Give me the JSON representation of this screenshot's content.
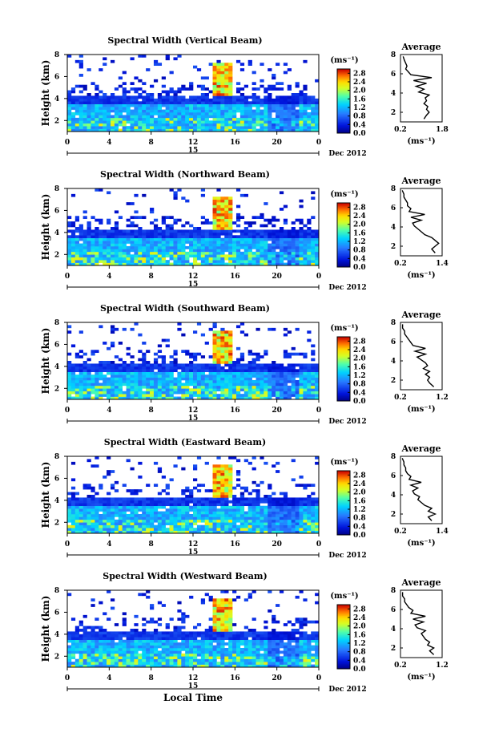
{
  "chart_data": [
    {
      "type": "heatmap",
      "title": "Spectral Width (Vertical Beam)",
      "ylabel": "Height (km)",
      "yticks": [
        "2",
        "4",
        "6",
        "8"
      ],
      "xticks": [
        "0",
        "4",
        "8",
        "12",
        "16",
        "20",
        "0"
      ],
      "xlim": [
        0,
        24
      ],
      "ylim": [
        1,
        8
      ],
      "date_day": "15",
      "date_month": "Dec 2012",
      "colorbar": {
        "unit": "(ms⁻¹)",
        "ticks": [
          "0.0",
          "0.4",
          "0.8",
          "1.2",
          "1.6",
          "2.0",
          "2.4",
          "2.8"
        ],
        "range": [
          0,
          3.0
        ]
      },
      "profile": {
        "title": "Average",
        "yticks": [
          "2",
          "4",
          "6",
          "8"
        ],
        "xticks": [
          "0.2",
          "1.8"
        ],
        "xlim": [
          0.2,
          1.8
        ],
        "xlabel": "(ms⁻¹)",
        "x": [
          1.1,
          1.2,
          1.3,
          1.2,
          1.25,
          1.1,
          1.2,
          1.15,
          1.3,
          0.9,
          1.1,
          0.8,
          1.2,
          0.7,
          1.4,
          0.6,
          0.5,
          0.4,
          0.45,
          0.4,
          0.35,
          0.3
        ],
        "y": [
          1.3,
          1.7,
          2.0,
          2.3,
          2.6,
          2.9,
          3.2,
          3.5,
          3.8,
          4.1,
          4.4,
          4.7,
          5.0,
          5.3,
          5.6,
          5.9,
          6.2,
          6.5,
          6.8,
          7.1,
          7.4,
          7.8
        ]
      }
    },
    {
      "type": "heatmap",
      "title": "Spectral Width (Northward Beam)",
      "ylabel": "Height (km)",
      "yticks": [
        "2",
        "4",
        "6",
        "8"
      ],
      "xticks": [
        "0",
        "4",
        "8",
        "12",
        "16",
        "20",
        "0"
      ],
      "xlim": [
        0,
        24
      ],
      "ylim": [
        1,
        8
      ],
      "date_day": "15",
      "date_month": "Dec 2012",
      "colorbar": {
        "unit": "(ms⁻¹)",
        "ticks": [
          "0.0",
          "0.4",
          "0.8",
          "1.2",
          "1.6",
          "2.0",
          "2.4",
          "2.8"
        ],
        "range": [
          0,
          3.0
        ]
      },
      "profile": {
        "title": "Average",
        "yticks": [
          "2",
          "4",
          "6",
          "8"
        ],
        "xticks": [
          "0.2",
          "1.4"
        ],
        "xlim": [
          0.2,
          1.4
        ],
        "xlabel": "(ms⁻¹)",
        "x": [
          1.2,
          1.1,
          1.2,
          1.3,
          1.2,
          1.1,
          0.9,
          0.8,
          0.7,
          0.6,
          0.55,
          0.8,
          0.5,
          0.9,
          0.45,
          0.5,
          0.4,
          0.4,
          0.35,
          0.3,
          0.3,
          0.25
        ],
        "y": [
          1.3,
          1.7,
          2.0,
          2.3,
          2.6,
          2.9,
          3.2,
          3.5,
          3.8,
          4.1,
          4.4,
          4.7,
          5.0,
          5.3,
          5.6,
          5.9,
          6.2,
          6.5,
          6.8,
          7.1,
          7.4,
          7.8
        ]
      }
    },
    {
      "type": "heatmap",
      "title": "Spectral Width (Southward Beam)",
      "ylabel": "Height (km)",
      "yticks": [
        "2",
        "4",
        "6",
        "8"
      ],
      "xticks": [
        "0",
        "4",
        "8",
        "12",
        "16",
        "20",
        "0"
      ],
      "xlim": [
        0,
        24
      ],
      "ylim": [
        1,
        8
      ],
      "date_day": "15",
      "date_month": "Dec 2012",
      "colorbar": {
        "unit": "(ms⁻¹)",
        "ticks": [
          "0.0",
          "0.4",
          "0.8",
          "1.2",
          "1.6",
          "2.0",
          "2.4",
          "2.8"
        ],
        "range": [
          0,
          3.0
        ]
      },
      "profile": {
        "title": "Average",
        "yticks": [
          "2",
          "4",
          "6",
          "8"
        ],
        "xticks": [
          "0.2",
          "1.2"
        ],
        "xlim": [
          0.2,
          1.2
        ],
        "xlabel": "(ms⁻¹)",
        "x": [
          1.0,
          0.9,
          0.85,
          0.9,
          0.8,
          0.9,
          0.75,
          0.85,
          0.8,
          0.7,
          0.6,
          0.8,
          0.55,
          0.8,
          0.5,
          0.45,
          0.4,
          0.35,
          0.3,
          0.3,
          0.25,
          0.25
        ],
        "y": [
          1.3,
          1.7,
          2.0,
          2.3,
          2.6,
          2.9,
          3.2,
          3.5,
          3.8,
          4.1,
          4.4,
          4.7,
          5.0,
          5.3,
          5.6,
          5.9,
          6.2,
          6.5,
          6.8,
          7.1,
          7.4,
          7.8
        ]
      }
    },
    {
      "type": "heatmap",
      "title": "Spectral Width (Eastward Beam)",
      "ylabel": "Height (km)",
      "yticks": [
        "2",
        "4",
        "6",
        "8"
      ],
      "xticks": [
        "0",
        "4",
        "8",
        "12",
        "16",
        "20",
        "0"
      ],
      "xlim": [
        0,
        24
      ],
      "ylim": [
        1,
        8
      ],
      "date_day": "15",
      "date_month": "Dec 2012",
      "colorbar": {
        "unit": "(ms⁻¹)",
        "ticks": [
          "0.0",
          "0.4",
          "0.8",
          "1.2",
          "1.6",
          "2.0",
          "2.4",
          "2.8"
        ],
        "range": [
          0,
          3.0
        ]
      },
      "profile": {
        "title": "Average",
        "yticks": [
          "2",
          "4",
          "6",
          "8"
        ],
        "xticks": [
          "0.2",
          "1.4"
        ],
        "xlim": [
          0.2,
          1.4
        ],
        "xlabel": "(ms⁻¹)",
        "x": [
          1.1,
          1.0,
          1.2,
          1.0,
          1.1,
          0.9,
          0.8,
          0.7,
          0.75,
          0.6,
          0.55,
          0.7,
          0.5,
          0.8,
          0.45,
          0.5,
          0.4,
          0.35,
          0.35,
          0.3,
          0.3,
          0.25
        ],
        "y": [
          1.3,
          1.7,
          2.0,
          2.3,
          2.6,
          2.9,
          3.2,
          3.5,
          3.8,
          4.1,
          4.4,
          4.7,
          5.0,
          5.3,
          5.6,
          5.9,
          6.2,
          6.5,
          6.8,
          7.1,
          7.4,
          7.8
        ]
      }
    },
    {
      "type": "heatmap",
      "title": "Spectral Width (Westward Beam)",
      "ylabel": "Height (km)",
      "yticks": [
        "2",
        "4",
        "6",
        "8"
      ],
      "xticks": [
        "0",
        "4",
        "8",
        "12",
        "16",
        "20",
        "0"
      ],
      "xlim": [
        0,
        24
      ],
      "ylim": [
        1,
        8
      ],
      "date_day": "15",
      "date_month": "Dec 2012",
      "xlabel": "Local Time",
      "colorbar": {
        "unit": "(ms⁻¹)",
        "ticks": [
          "0.0",
          "0.4",
          "0.8",
          "1.2",
          "1.6",
          "2.0",
          "2.4",
          "2.8"
        ],
        "range": [
          0,
          3.0
        ]
      },
      "profile": {
        "title": "Average",
        "yticks": [
          "2",
          "4",
          "6",
          "8"
        ],
        "xticks": [
          "0.2",
          "1.2"
        ],
        "xlim": [
          0.2,
          1.2
        ],
        "xlabel": "(ms⁻¹)",
        "x": [
          1.0,
          0.9,
          1.0,
          0.85,
          0.9,
          0.8,
          0.75,
          0.7,
          0.8,
          0.6,
          0.55,
          0.75,
          0.5,
          0.8,
          0.45,
          0.5,
          0.4,
          0.35,
          0.3,
          0.3,
          0.25,
          0.25
        ],
        "y": [
          1.3,
          1.7,
          2.0,
          2.3,
          2.6,
          2.9,
          3.2,
          3.5,
          3.8,
          4.1,
          4.4,
          4.7,
          5.0,
          5.3,
          5.6,
          5.9,
          6.2,
          6.5,
          6.8,
          7.1,
          7.4,
          7.8
        ]
      }
    }
  ]
}
